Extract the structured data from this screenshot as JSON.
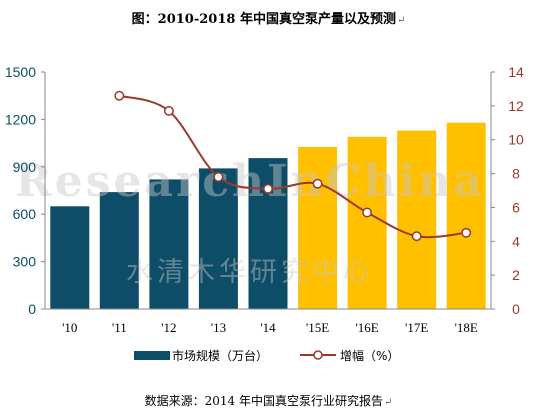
{
  "title": "图：2010-2018 年中国真空泵产量以及预测",
  "return_mark": "↵",
  "source": "数据来源：2014 年中国真空泵行业研究报告",
  "watermark": {
    "english": "ResearchInChina",
    "chinese": "水清木华研究中心"
  },
  "chart_data": {
    "type": "bar",
    "categories": [
      "'10",
      "'11",
      "'12",
      "'13",
      "'14",
      "'15E",
      "'16E",
      "'17E",
      "'18E"
    ],
    "series": [
      {
        "name": "市场规模（万台）",
        "type": "bar",
        "axis": "left",
        "values": [
          650,
          740,
          820,
          890,
          955,
          1025,
          1090,
          1130,
          1180
        ],
        "colors": [
          "#0e4d67",
          "#0e4d67",
          "#0e4d67",
          "#0e4d67",
          "#0e4d67",
          "#ffc000",
          "#ffc000",
          "#ffc000",
          "#ffc000"
        ]
      },
      {
        "name": "增幅（%）",
        "type": "line",
        "axis": "right",
        "values": [
          null,
          12.6,
          11.7,
          7.8,
          7.1,
          7.4,
          5.7,
          4.3,
          4.5
        ],
        "color": "#9b3a2c"
      }
    ],
    "left_axis": {
      "ylim": [
        0,
        1500
      ],
      "ticks": [
        "0",
        "300",
        "600",
        "900",
        "1200",
        "1500"
      ]
    },
    "right_axis": {
      "ylim": [
        0,
        14
      ],
      "ticks": [
        "0",
        "2",
        "4",
        "6",
        "8",
        "10",
        "12",
        "14"
      ]
    },
    "grid": false,
    "legend": "bottom"
  }
}
